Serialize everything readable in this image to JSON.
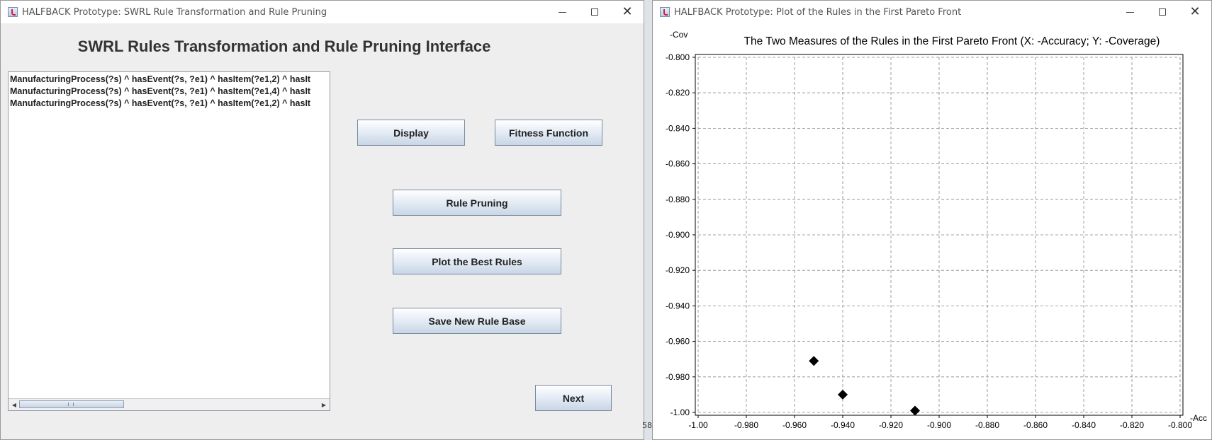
{
  "left_window": {
    "title": "HALFBACK Prototype: SWRL Rule Transformation and Rule Pruning",
    "heading": "SWRL Rules Transformation and Rule Pruning Interface",
    "rules": [
      "ManufacturingProcess(?s) ^ hasEvent(?s, ?e1)  ^ hasItem(?e1,2) ^ hasIt",
      "ManufacturingProcess(?s) ^ hasEvent(?s, ?e1)  ^ hasItem(?e1,4) ^ hasIt",
      "ManufacturingProcess(?s) ^ hasEvent(?s, ?e1)  ^ hasItem(?e1,2) ^ hasIt"
    ],
    "buttons": {
      "display": "Display",
      "fitness": "Fitness Function",
      "prune": "Rule Pruning",
      "plot": "Plot the Best Rules",
      "save": "Save New Rule Base",
      "next": "Next"
    }
  },
  "background_fragment": "58",
  "right_window": {
    "title": "HALFBACK Prototype: Plot of the Rules in the First Pareto Front"
  },
  "chart_data": {
    "type": "scatter",
    "title": "The Two Measures of the Rules in the First Pareto Front (X: -Accuracy; Y: -Coverage)",
    "xlabel": "-Acc",
    "ylabel": "-Cov",
    "xlim": [
      -1.0,
      -0.8
    ],
    "ylim": [
      -1.0,
      -0.8
    ],
    "x_ticks": [
      "-1.00",
      "-0.980",
      "-0.960",
      "-0.940",
      "-0.920",
      "-0.900",
      "-0.880",
      "-0.860",
      "-0.840",
      "-0.820",
      "-0.800"
    ],
    "y_ticks": [
      "-0.800",
      "-0.820",
      "-0.840",
      "-0.860",
      "-0.880",
      "-0.900",
      "-0.920",
      "-0.940",
      "-0.960",
      "-0.980",
      "-1.00"
    ],
    "grid": true,
    "marker": "diamond",
    "marker_color": "#000000",
    "points": [
      {
        "x": -0.952,
        "y": -0.971
      },
      {
        "x": -0.94,
        "y": -0.99
      },
      {
        "x": -0.91,
        "y": -0.999
      }
    ]
  }
}
